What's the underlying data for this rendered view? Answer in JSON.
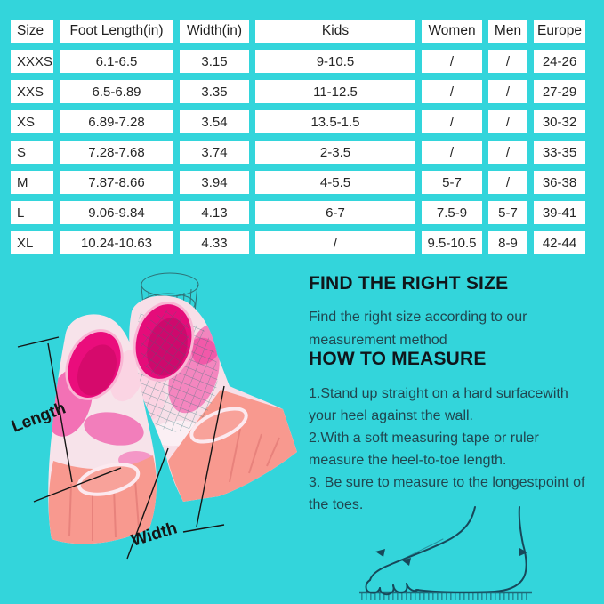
{
  "colors": {
    "background": "#33D5DB",
    "cell_background": "#FFFFFF",
    "table_text": "#262626",
    "heading_text": "#10161B",
    "body_text": "#20464F",
    "fin_hot_pink": "#EA0D7C",
    "fin_salmon": "#F8998F",
    "wireframe_teal": "#2E7277",
    "diagram_ink": "#17485A"
  },
  "chart_data": {
    "type": "table",
    "columns": [
      "Size",
      "Foot Length(in)",
      "Width(in)",
      "Kids",
      "Women",
      "Men",
      "Europe"
    ],
    "rows": [
      [
        "XXXS",
        "6.1-6.5",
        "3.15",
        "9-10.5",
        "/",
        "/",
        "24-26"
      ],
      [
        "XXS",
        "6.5-6.89",
        "3.35",
        "11-12.5",
        "/",
        "/",
        "27-29"
      ],
      [
        "XS",
        "6.89-7.28",
        "3.54",
        "13.5-1.5",
        "/",
        "/",
        "30-32"
      ],
      [
        "S",
        "7.28-7.68",
        "3.74",
        "2-3.5",
        "/",
        "/",
        "33-35"
      ],
      [
        "M",
        "7.87-8.66",
        "3.94",
        "4-5.5",
        "5-7",
        "/",
        "36-38"
      ],
      [
        "L",
        "9.06-9.84",
        "4.13",
        "6-7",
        "7.5-9",
        "5-7",
        "39-41"
      ],
      [
        "XL",
        "10.24-10.63",
        "4.33",
        "/",
        "9.5-10.5",
        "8-9",
        "42-44"
      ]
    ]
  },
  "illustration": {
    "length_label": "Length",
    "width_label": "Width"
  },
  "guide": {
    "find_title": "FIND THE RIGHT SIZE",
    "find_body": "Find the right size according to our\nmeasurement method",
    "measure_title": "HOW TO MEASURE",
    "measure_steps": "1.Stand up straight on a hard surfacewith\nyour heel against the wall.\n2.With a soft measuring tape or ruler\nmeasure the heel-to-toe length.\n3. Be sure to measure to the longestpoint of\nthe toes."
  }
}
